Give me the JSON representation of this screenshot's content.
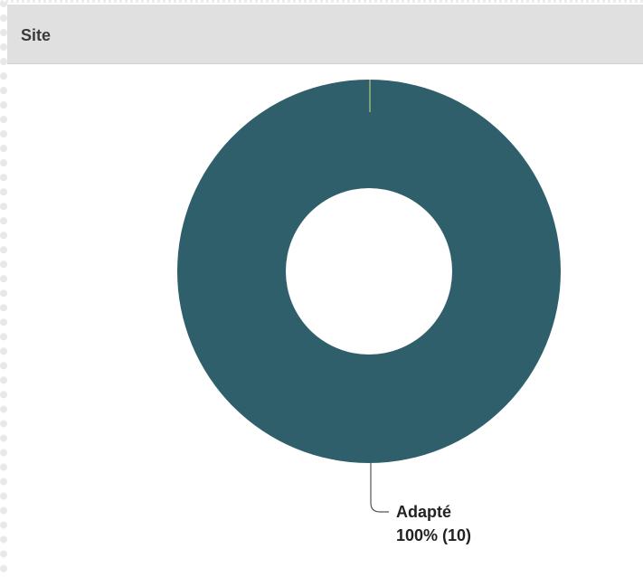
{
  "panel": {
    "title": "Site"
  },
  "chart_data": {
    "type": "pie",
    "donut": true,
    "title": "Site",
    "slices": [
      {
        "label": "Adapté",
        "value": 10,
        "percent": 100,
        "display": "100% (10)",
        "color": "#2e5f6b"
      },
      {
        "label": "",
        "value": 0,
        "percent": 0,
        "display": "",
        "color": "#b7c77e"
      }
    ]
  },
  "colors": {
    "header_bg": "#e0e0e0",
    "slice_main": "#2e5f6b",
    "slice_minor": "#b7c77e",
    "leader_line": "#555555"
  }
}
